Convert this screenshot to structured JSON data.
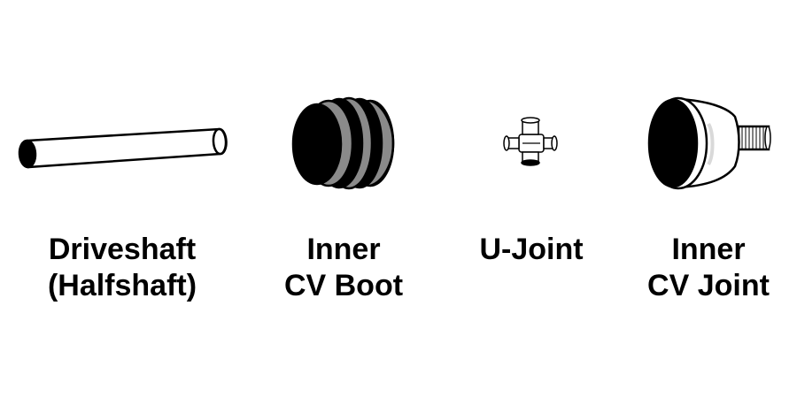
{
  "parts": [
    {
      "id": "driveshaft",
      "lines": [
        "Driveshaft",
        "(Halfshaft)"
      ],
      "icon": "driveshaft-icon"
    },
    {
      "id": "inner-cv-boot",
      "lines": [
        "Inner",
        "CV Boot"
      ],
      "icon": "cv-boot-icon"
    },
    {
      "id": "u-joint",
      "lines": [
        "U-Joint"
      ],
      "icon": "u-joint-icon"
    },
    {
      "id": "inner-cv-joint",
      "lines": [
        "Inner",
        "CV Joint"
      ],
      "icon": "cv-joint-icon"
    }
  ],
  "colors": {
    "ink": "#000000",
    "boot_fold": "#8a8a8a",
    "paper": "#ffffff",
    "shade": "#d9d9d9"
  }
}
